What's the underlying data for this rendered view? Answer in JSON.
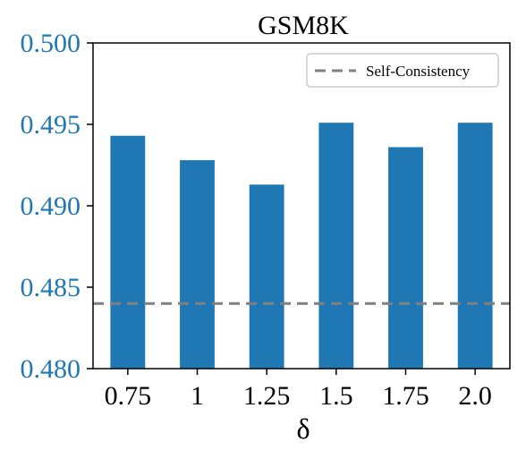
{
  "chart_data": {
    "type": "bar",
    "title": "GSM8K",
    "xlabel": "δ",
    "ylabel": "",
    "categories": [
      "0.75",
      "1",
      "1.25",
      "1.5",
      "1.75",
      "2.0"
    ],
    "values": [
      0.4943,
      0.4928,
      0.4913,
      0.4951,
      0.4936,
      0.4951
    ],
    "ylim": [
      0.48,
      0.5
    ],
    "yticks": [
      0.48,
      0.485,
      0.49,
      0.495,
      0.5
    ],
    "ytick_labels": [
      "0.480",
      "0.485",
      "0.490",
      "0.495",
      "0.500"
    ],
    "bar_color": "#1f77b4",
    "ytick_color": "#1f77b4",
    "reference_line": {
      "name": "Self-Consistency",
      "value": 0.484,
      "style": "dashed",
      "color": "#808080"
    },
    "legend": {
      "entries": [
        "Self-Consistency"
      ],
      "placement": "top-right"
    },
    "grid": false
  }
}
